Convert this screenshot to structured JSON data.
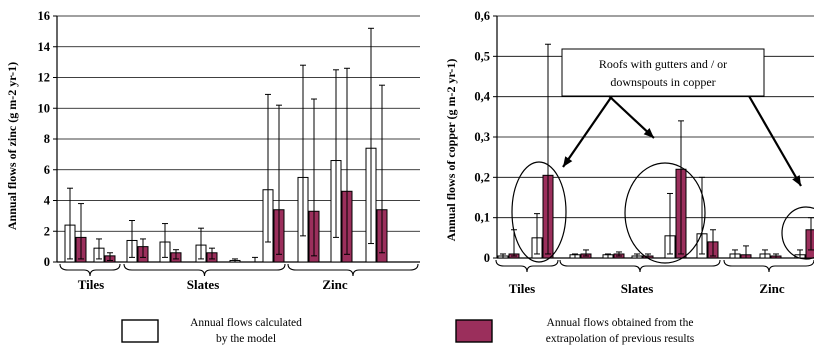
{
  "colors": {
    "calculated_fill": "#ffffff",
    "extrapolated_fill": "#9b2f5c",
    "gridline": "#000000",
    "axis": "#000000"
  },
  "legend": {
    "calculated_line1": "Annual flows calculated",
    "calculated_line2": "by the model",
    "extrapolated_line1": "Annual flows obtained from the",
    "extrapolated_line2": "extrapolation of previous results"
  },
  "chart_data": [
    {
      "type": "bar",
      "ylabel": "Annual flows of zinc (g m-2 yr-1)",
      "ylim": [
        0,
        16
      ],
      "yticks": [
        0,
        2,
        4,
        6,
        8,
        10,
        12,
        14,
        16
      ],
      "ytick_labels": [
        "0",
        "2",
        "4",
        "6",
        "8",
        "10",
        "12",
        "14",
        "16"
      ],
      "grid": true,
      "groups": [
        "Tiles",
        "Slates",
        "Zinc"
      ],
      "series_keys": [
        "calculated",
        "extrapolated"
      ],
      "bars": [
        {
          "group": "Tiles",
          "calculated": 2.4,
          "calc_err": [
            0.2,
            4.8
          ],
          "extrapolated": 1.6,
          "extr_err": [
            0.2,
            3.8
          ]
        },
        {
          "group": "Tiles",
          "calculated": 0.9,
          "calc_err": [
            0.2,
            1.5
          ],
          "extrapolated": 0.4,
          "extr_err": [
            0.1,
            0.6
          ]
        },
        {
          "group": "Slates",
          "calculated": 1.4,
          "calc_err": [
            0.3,
            2.7
          ],
          "extrapolated": 1.0,
          "extr_err": [
            0.3,
            1.5
          ]
        },
        {
          "group": "Slates",
          "calculated": 1.3,
          "calc_err": [
            0.3,
            2.5
          ],
          "extrapolated": 0.6,
          "extr_err": [
            0.2,
            0.8
          ]
        },
        {
          "group": "Slates",
          "calculated": 1.1,
          "calc_err": [
            0.2,
            2.2
          ],
          "extrapolated": 0.6,
          "extr_err": [
            0.2,
            0.9
          ]
        },
        {
          "group": "Slates",
          "calculated": 0.1,
          "calc_err": [
            0.0,
            0.2
          ],
          "extrapolated": 0.0,
          "extr_err": [
            0.0,
            0.0
          ]
        },
        {
          "group": "Slates",
          "calculated": 0.0,
          "calc_err": [
            0.0,
            0.3
          ],
          "extrapolated": 0.0,
          "extr_err": [
            0.0,
            0.0
          ]
        },
        {
          "group": "Zinc",
          "calculated": 4.7,
          "calc_err": [
            1.3,
            10.9
          ],
          "extrapolated": 3.4,
          "extr_err": [
            0.5,
            10.2
          ]
        },
        {
          "group": "Zinc",
          "calculated": 5.5,
          "calc_err": [
            1.7,
            12.8
          ],
          "extrapolated": 3.3,
          "extr_err": [
            0.4,
            10.6
          ]
        },
        {
          "group": "Zinc",
          "calculated": 6.6,
          "calc_err": [
            1.6,
            12.5
          ],
          "extrapolated": 4.6,
          "extr_err": [
            0.5,
            12.6
          ]
        },
        {
          "group": "Zinc",
          "calculated": 7.4,
          "calc_err": [
            1.2,
            15.2
          ],
          "extrapolated": 3.4,
          "extr_err": [
            0.6,
            11.5
          ]
        }
      ]
    },
    {
      "type": "bar",
      "ylabel": "Annual flows of copper (g m-2 yr-1)",
      "ylim": [
        0,
        0.6
      ],
      "yticks": [
        0,
        0.1,
        0.2,
        0.3,
        0.4,
        0.5,
        0.6
      ],
      "ytick_labels": [
        "0",
        "0,1",
        "0,2",
        "0,3",
        "0,4",
        "0,5",
        "0,6"
      ],
      "grid": true,
      "groups": [
        "Tiles",
        "Slates",
        "Zinc"
      ],
      "series_keys": [
        "calculated",
        "extrapolated"
      ],
      "annotation": {
        "line1": "Roofs with gutters and / or",
        "line2": "downspouts in copper"
      },
      "bars": [
        {
          "group": "Tiles",
          "calculated": 0.005,
          "calc_err": [
            0.0,
            0.01
          ],
          "extrapolated": 0.01,
          "extr_err": [
            0.005,
            0.07
          ]
        },
        {
          "group": "Tiles",
          "calculated": 0.05,
          "calc_err": [
            0.01,
            0.11
          ],
          "extrapolated": 0.205,
          "extr_err": [
            0.01,
            0.53
          ]
        },
        {
          "group": "Slates",
          "calculated": 0.008,
          "calc_err": [
            0.0,
            0.01
          ],
          "extrapolated": 0.01,
          "extr_err": [
            0.005,
            0.02
          ]
        },
        {
          "group": "Slates",
          "calculated": 0.008,
          "calc_err": [
            0.0,
            0.01
          ],
          "extrapolated": 0.01,
          "extr_err": [
            0.005,
            0.015
          ]
        },
        {
          "group": "Slates",
          "calculated": 0.005,
          "calc_err": [
            0.0,
            0.01
          ],
          "extrapolated": 0.005,
          "extr_err": [
            0.0,
            0.01
          ]
        },
        {
          "group": "Slates",
          "calculated": 0.055,
          "calc_err": [
            0.01,
            0.16
          ],
          "extrapolated": 0.22,
          "extr_err": [
            0.01,
            0.34
          ]
        },
        {
          "group": "Slates",
          "calculated": 0.06,
          "calc_err": [
            0.01,
            0.2
          ],
          "extrapolated": 0.04,
          "extr_err": [
            0.005,
            0.07
          ]
        },
        {
          "group": "Zinc",
          "calculated": 0.01,
          "calc_err": [
            0.0,
            0.02
          ],
          "extrapolated": 0.008,
          "extr_err": [
            0.0,
            0.03
          ]
        },
        {
          "group": "Zinc",
          "calculated": 0.01,
          "calc_err": [
            0.0,
            0.02
          ],
          "extrapolated": 0.005,
          "extr_err": [
            0.0,
            0.01
          ]
        },
        {
          "group": "Zinc",
          "calculated": 0.008,
          "calc_err": [
            0.0,
            0.02
          ],
          "extrapolated": 0.07,
          "extr_err": [
            0.02,
            0.1
          ]
        }
      ]
    }
  ]
}
